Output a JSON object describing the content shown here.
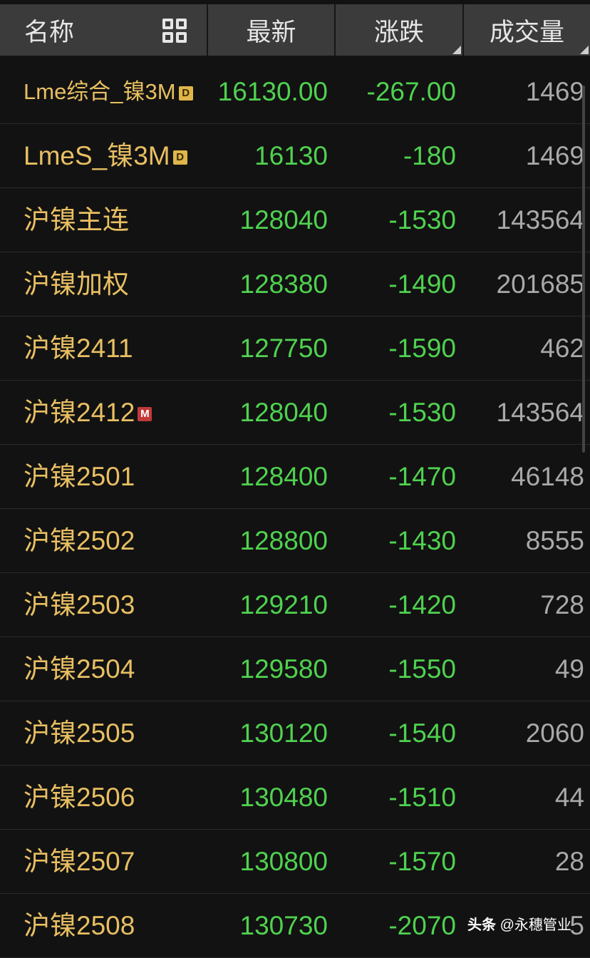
{
  "header": {
    "name": "名称",
    "latest": "最新",
    "change": "涨跌",
    "volume": "成交量"
  },
  "colors": {
    "name": "#e8bf62",
    "down": "#4fd24f",
    "volume": "#a9a9a9",
    "header_bg": "#3b3b3b"
  },
  "rows": [
    {
      "name": "Lme综合_镍3M",
      "badge": "D",
      "latest": "16130.00",
      "change": "-267.00",
      "volume": "1469"
    },
    {
      "name": "LmeS_镍3M",
      "badge": "D",
      "latest": "16130",
      "change": "-180",
      "volume": "1469"
    },
    {
      "name": "沪镍主连",
      "latest": "128040",
      "change": "-1530",
      "volume": "143564"
    },
    {
      "name": "沪镍加权",
      "latest": "128380",
      "change": "-1490",
      "volume": "201685"
    },
    {
      "name": "沪镍2411",
      "latest": "127750",
      "change": "-1590",
      "volume": "462"
    },
    {
      "name": "沪镍2412",
      "badge": "M",
      "latest": "128040",
      "change": "-1530",
      "volume": "143564"
    },
    {
      "name": "沪镍2501",
      "latest": "128400",
      "change": "-1470",
      "volume": "46148"
    },
    {
      "name": "沪镍2502",
      "latest": "128800",
      "change": "-1430",
      "volume": "8555"
    },
    {
      "name": "沪镍2503",
      "latest": "129210",
      "change": "-1420",
      "volume": "728"
    },
    {
      "name": "沪镍2504",
      "latest": "129580",
      "change": "-1550",
      "volume": "49"
    },
    {
      "name": "沪镍2505",
      "latest": "130120",
      "change": "-1540",
      "volume": "2060"
    },
    {
      "name": "沪镍2506",
      "latest": "130480",
      "change": "-1510",
      "volume": "44"
    },
    {
      "name": "沪镍2507",
      "latest": "130800",
      "change": "-1570",
      "volume": "28"
    },
    {
      "name": "沪镍2508",
      "latest": "130730",
      "change": "-2070",
      "volume": "5"
    }
  ],
  "watermark": {
    "brand": "头条",
    "author": "@永穗管业"
  }
}
